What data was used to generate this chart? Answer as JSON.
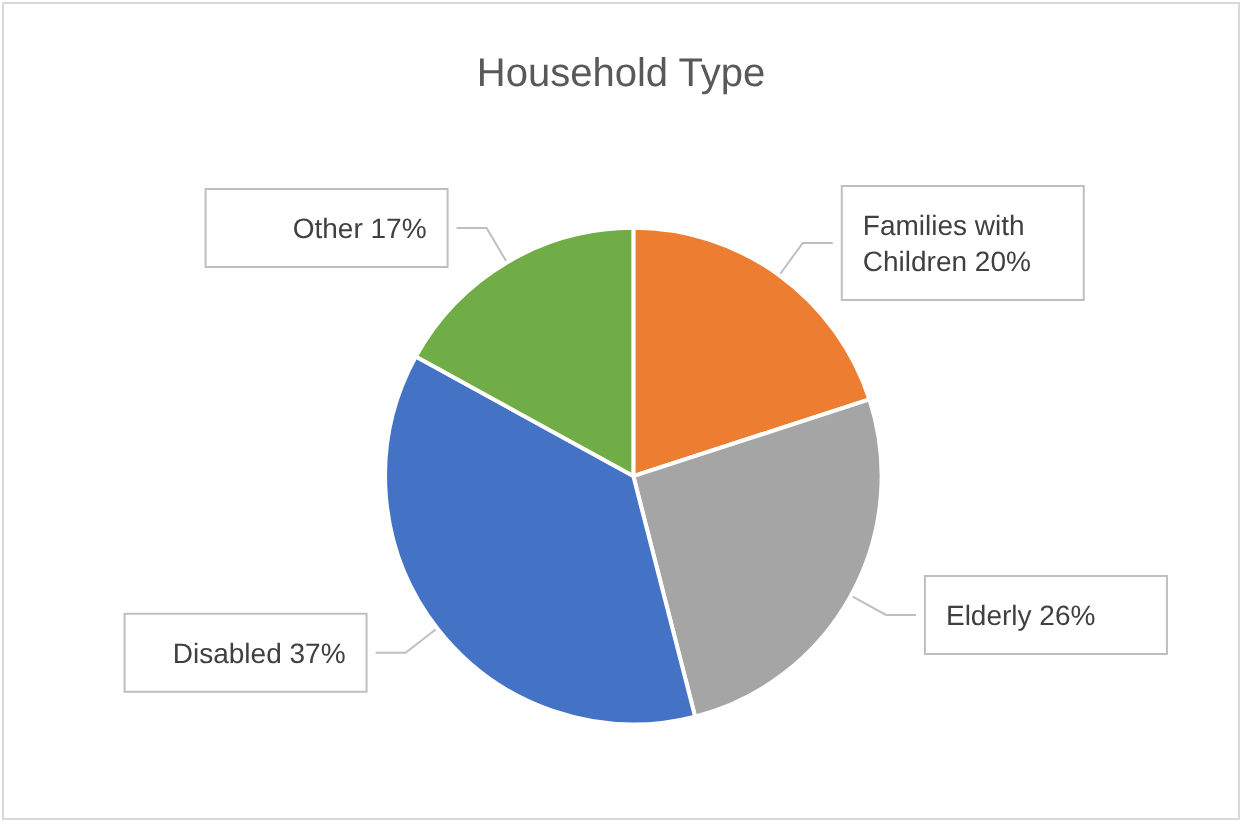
{
  "chart_data": {
    "type": "pie",
    "title": "Household Type",
    "categories": [
      "Families with Children",
      "Elderly",
      "Disabled",
      "Other"
    ],
    "values": [
      20,
      26,
      37,
      17
    ],
    "colors": [
      "#ed7d31",
      "#a5a5a5",
      "#4472c4",
      "#70ad47"
    ],
    "value_labels": [
      "20%",
      "26%",
      "37%",
      "17%"
    ],
    "legend": false
  }
}
